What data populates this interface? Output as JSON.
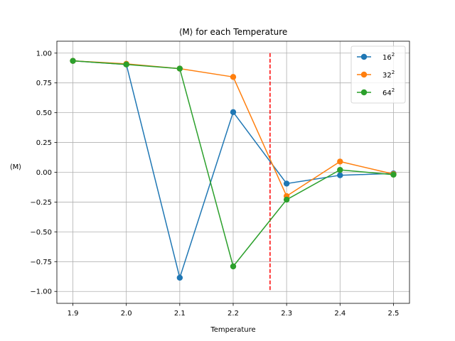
{
  "chart_data": {
    "type": "line",
    "title": "⟨M⟩ for each Temperature",
    "xlabel": "Temperature",
    "ylabel": "⟨M⟩",
    "x": [
      1.9,
      2.0,
      2.1,
      2.2,
      2.3,
      2.4,
      2.5
    ],
    "x_tick_labels": [
      "1.9",
      "2.0",
      "2.1",
      "2.2",
      "2.3",
      "2.4",
      "2.5"
    ],
    "y_ticks": [
      -1.0,
      -0.75,
      -0.5,
      -0.25,
      0.0,
      0.25,
      0.5,
      0.75,
      1.0
    ],
    "y_tick_labels": [
      "−1.00",
      "−0.75",
      "−0.50",
      "−0.25",
      "0.00",
      "0.25",
      "0.50",
      "0.75",
      "1.00"
    ],
    "xlim": [
      1.87,
      2.53
    ],
    "ylim": [
      -1.1,
      1.1
    ],
    "grid": true,
    "legend_position": "top-right",
    "series": [
      {
        "name": "16",
        "superscript": "2",
        "color": "#1f77b4",
        "values": [
          0.935,
          0.905,
          -0.885,
          0.505,
          -0.095,
          -0.025,
          -0.01
        ]
      },
      {
        "name": "32",
        "superscript": "2",
        "color": "#ff7f0e",
        "values": [
          0.935,
          0.91,
          0.87,
          0.8,
          -0.2,
          0.09,
          -0.015
        ]
      },
      {
        "name": "64",
        "superscript": "2",
        "color": "#2ca02c",
        "values": [
          0.935,
          0.905,
          0.87,
          -0.79,
          -0.23,
          0.02,
          -0.02
        ]
      }
    ],
    "vline": {
      "x": 2.269,
      "ymin": -1.0,
      "ymax": 1.0,
      "color": "#ff0000",
      "style": "dashed"
    }
  }
}
